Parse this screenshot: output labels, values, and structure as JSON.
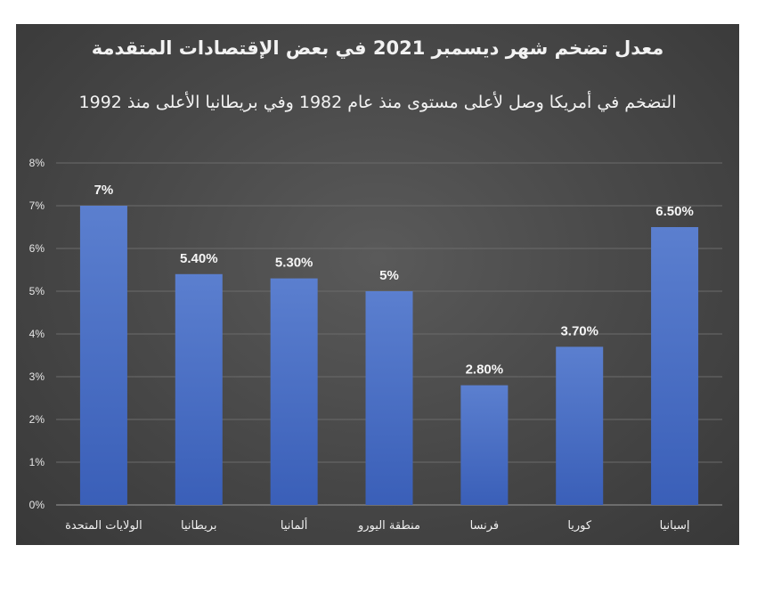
{
  "chart_data": {
    "type": "bar",
    "title": "معدل تضخم شهر ديسمبر 2021 في بعض الإقتصادات المتقدمة",
    "subtitle": "التضخم في أمريكا وصل لأعلى مستوى منذ عام 1982 وفي بريطانيا الأعلى منذ 1992",
    "categories": [
      "الولايات المتحدة",
      "بريطانيا",
      "ألمانيا",
      "منطقة اليورو",
      "فرنسا",
      "كوريا",
      "إسبانيا"
    ],
    "values": [
      7.0,
      5.4,
      5.3,
      5.0,
      2.8,
      3.7,
      6.5
    ],
    "data_labels": [
      "7%",
      "5.40%",
      "5.30%",
      "5%",
      "2.80%",
      "3.70%",
      "6.50%"
    ],
    "y_ticks": [
      "0%",
      "1%",
      "2%",
      "3%",
      "4%",
      "5%",
      "6%",
      "7%",
      "8%"
    ],
    "ylim": [
      0,
      8
    ],
    "grid": true,
    "legend": "none",
    "colors": {
      "bar_top": "#5b7fcf",
      "bar_bottom": "#3a5fb8",
      "grid": "#6b6b6b",
      "background": "#474747",
      "text": "#f2f2f2"
    }
  }
}
